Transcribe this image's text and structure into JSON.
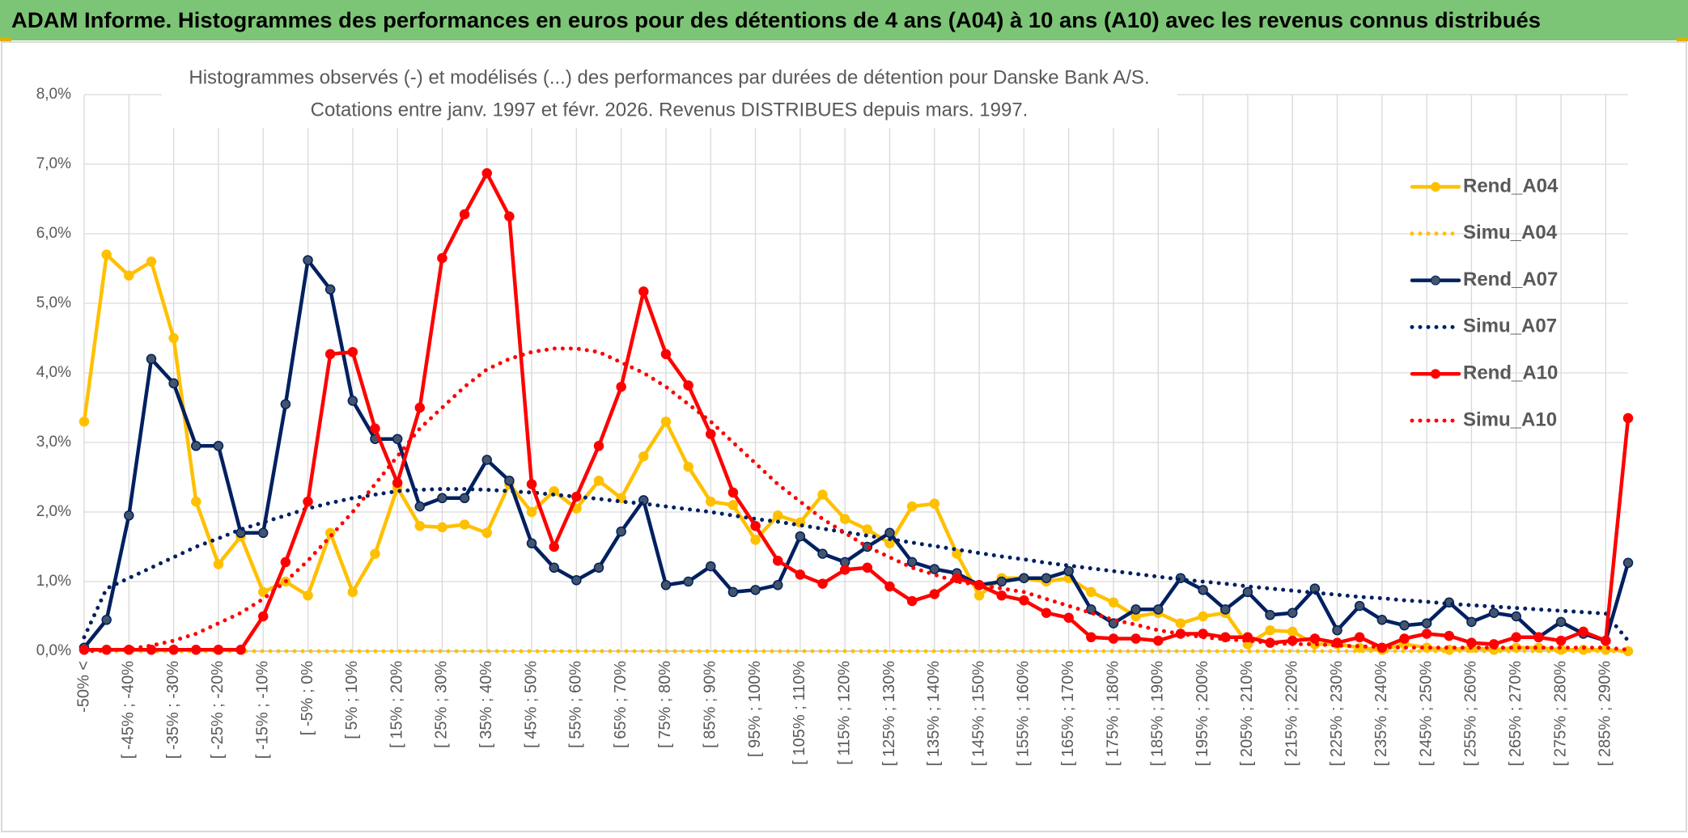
{
  "header": "ADAM Informe. Histogrammes des performances en euros pour des détentions de 4 ans (A04) à 10 ans (A10) avec les revenus connus distribués",
  "chart_data": {
    "type": "line",
    "title": "Histogrammes observés (-) et modélisés (...) des performances par durées de détention pour Danske Bank A/S.",
    "subtitle": "Cotations entre janv. 1997 et févr. 2026. Revenus DISTRIBUES depuis mars. 1997.",
    "categories": [
      "-50% <",
      null,
      "[ -45% ; -40%",
      null,
      "[ -35% ; -30%",
      null,
      "[ -25% ; -20%",
      null,
      "[ -15% ; -10%",
      null,
      "[ -5% ; 0%",
      null,
      "[ 5% ; 10%",
      null,
      "[ 15% ; 20%",
      null,
      "[ 25% ; 30%",
      null,
      "[ 35% ; 40%",
      null,
      "[ 45% ; 50%",
      null,
      "[ 55% ; 60%",
      null,
      "[ 65% ; 70%",
      null,
      "[ 75% ; 80%",
      null,
      "[ 85% ; 90%",
      null,
      "[ 95% ; 100%",
      null,
      "[ 105% ; 110%",
      null,
      "[ 115% ; 120%",
      null,
      "[ 125% ; 130%",
      null,
      "[ 135% ; 140%",
      null,
      "[ 145% ; 150%",
      null,
      "[ 155% ; 160%",
      null,
      "[ 165% ; 170%",
      null,
      "[ 175% ; 180%",
      null,
      "[ 185% ; 190%",
      null,
      "[ 195% ; 200%",
      null,
      "[ 205% ; 210%",
      null,
      "[ 215% ; 220%",
      null,
      "[ 225% ; 230%",
      null,
      "[ 235% ; 240%",
      null,
      "[ 245% ; 250%",
      null,
      "[ 255% ; 260%",
      null,
      "[ 265% ; 270%",
      null,
      "[ 275% ; 280%",
      null,
      "[ 285% ; 290%",
      null
    ],
    "series": [
      {
        "name": "Rend_A04",
        "color": "#FFC000",
        "line_style": "solid",
        "markers": true,
        "values": [
          3.3,
          5.7,
          5.4,
          5.6,
          4.5,
          2.15,
          1.25,
          1.65,
          0.85,
          1.0,
          0.8,
          1.7,
          0.85,
          1.4,
          2.35,
          1.8,
          1.78,
          1.82,
          1.7,
          2.4,
          2.0,
          2.3,
          2.05,
          2.45,
          2.2,
          2.8,
          3.3,
          2.65,
          2.15,
          2.1,
          1.6,
          1.95,
          1.85,
          2.25,
          1.9,
          1.75,
          1.55,
          2.08,
          2.12,
          1.4,
          0.8,
          1.05,
          1.05,
          1.0,
          1.05,
          0.85,
          0.7,
          0.5,
          0.55,
          0.4,
          0.5,
          0.55,
          0.1,
          0.3,
          0.28,
          0.1,
          0.1,
          0.05,
          0.02,
          0.1,
          0.05,
          0.02,
          0.05,
          0.02,
          0.05,
          0.05,
          0.02,
          0.02,
          0.02,
          0.0
        ]
      },
      {
        "name": "Simu_A04",
        "color": "#FFC000",
        "line_style": "dotted",
        "markers": false,
        "values": [
          0,
          0,
          0,
          0,
          0,
          0,
          0,
          0,
          0,
          0,
          0,
          0,
          0,
          0,
          0,
          0,
          0,
          0,
          0,
          0,
          0,
          0,
          0,
          0,
          0,
          0,
          0,
          0,
          0,
          0,
          0,
          0,
          0,
          0,
          0,
          0,
          0,
          0,
          0,
          0,
          0,
          0,
          0,
          0,
          0,
          0,
          0,
          0,
          0,
          0,
          0,
          0,
          0,
          0,
          0,
          0,
          0,
          0,
          0,
          0,
          0,
          0,
          0,
          0,
          0,
          0,
          0,
          0,
          0,
          0
        ]
      },
      {
        "name": "Rend_A07",
        "color": "#002060",
        "line_style": "solid",
        "markers": true,
        "values": [
          0.05,
          0.45,
          1.95,
          4.2,
          3.85,
          2.95,
          2.95,
          1.7,
          1.7,
          3.55,
          5.62,
          5.2,
          3.6,
          3.05,
          3.05,
          2.08,
          2.2,
          2.2,
          2.75,
          2.45,
          1.55,
          1.2,
          1.02,
          1.2,
          1.72,
          2.17,
          0.95,
          1.0,
          1.22,
          0.85,
          0.88,
          0.95,
          1.65,
          1.4,
          1.28,
          1.5,
          1.7,
          1.28,
          1.18,
          1.12,
          0.95,
          1.0,
          1.05,
          1.05,
          1.15,
          0.6,
          0.4,
          0.6,
          0.6,
          1.05,
          0.88,
          0.6,
          0.85,
          0.52,
          0.55,
          0.9,
          0.3,
          0.65,
          0.45,
          0.37,
          0.4,
          0.7,
          0.42,
          0.55,
          0.5,
          0.2,
          0.42,
          0.25,
          0.15,
          1.27
        ]
      },
      {
        "name": "Simu_A07",
        "color": "#002060",
        "line_style": "dotted",
        "markers": false,
        "values": [
          0.2,
          0.9,
          1.05,
          1.2,
          1.35,
          1.5,
          1.62,
          1.75,
          1.85,
          1.95,
          2.05,
          2.13,
          2.2,
          2.25,
          2.3,
          2.32,
          2.33,
          2.33,
          2.32,
          2.3,
          2.28,
          2.25,
          2.22,
          2.19,
          2.15,
          2.12,
          2.08,
          2.04,
          2.0,
          1.95,
          1.9,
          1.86,
          1.81,
          1.76,
          1.71,
          1.66,
          1.61,
          1.56,
          1.51,
          1.46,
          1.41,
          1.36,
          1.32,
          1.27,
          1.23,
          1.19,
          1.15,
          1.11,
          1.07,
          1.03,
          1.0,
          0.97,
          0.93,
          0.9,
          0.87,
          0.84,
          0.81,
          0.78,
          0.76,
          0.73,
          0.71,
          0.68,
          0.66,
          0.64,
          0.62,
          0.6,
          0.58,
          0.56,
          0.54,
          0.15
        ]
      },
      {
        "name": "Rend_A10",
        "color": "#FF0000",
        "line_style": "solid",
        "markers": true,
        "values": [
          0.02,
          0.02,
          0.02,
          0.02,
          0.02,
          0.02,
          0.02,
          0.02,
          0.5,
          1.28,
          2.15,
          4.27,
          4.3,
          3.2,
          2.42,
          3.5,
          5.65,
          6.28,
          6.87,
          6.25,
          2.4,
          1.5,
          2.22,
          2.95,
          3.8,
          5.17,
          4.27,
          3.82,
          3.12,
          2.28,
          1.8,
          1.3,
          1.1,
          0.97,
          1.17,
          1.2,
          0.93,
          0.72,
          0.82,
          1.05,
          0.95,
          0.8,
          0.73,
          0.55,
          0.48,
          0.2,
          0.18,
          0.18,
          0.15,
          0.25,
          0.25,
          0.2,
          0.2,
          0.12,
          0.15,
          0.18,
          0.12,
          0.2,
          0.05,
          0.18,
          0.25,
          0.22,
          0.12,
          0.1,
          0.2,
          0.2,
          0.15,
          0.28,
          0.15,
          3.35
        ]
      },
      {
        "name": "Simu_A10",
        "color": "#FF0000",
        "line_style": "dotted",
        "markers": false,
        "values": [
          0,
          0.01,
          0.03,
          0.08,
          0.15,
          0.25,
          0.4,
          0.55,
          0.75,
          1.0,
          1.3,
          1.65,
          2.0,
          2.4,
          2.8,
          3.2,
          3.5,
          3.8,
          4.05,
          4.2,
          4.3,
          4.35,
          4.35,
          4.3,
          4.15,
          4.0,
          3.8,
          3.55,
          3.3,
          3.0,
          2.7,
          2.4,
          2.15,
          1.9,
          1.7,
          1.5,
          1.35,
          1.2,
          1.1,
          1.0,
          0.95,
          0.9,
          0.85,
          0.75,
          0.65,
          0.55,
          0.45,
          0.38,
          0.3,
          0.25,
          0.2,
          0.17,
          0.15,
          0.12,
          0.1,
          0.1,
          0.08,
          0.07,
          0.06,
          0.05,
          0.05,
          0.05,
          0.05,
          0.05,
          0.05,
          0.05,
          0.05,
          0.05,
          0.05,
          0.02
        ]
      }
    ],
    "ylim": [
      0,
      8
    ],
    "yticks": [
      {
        "value": 0,
        "label": "0,0%"
      },
      {
        "value": 1,
        "label": "1,0%"
      },
      {
        "value": 2,
        "label": "2,0%"
      },
      {
        "value": 3,
        "label": "3,0%"
      },
      {
        "value": 4,
        "label": "4,0%"
      },
      {
        "value": 5,
        "label": "5,0%"
      },
      {
        "value": 6,
        "label": "6,0%"
      },
      {
        "value": 7,
        "label": "7,0%"
      },
      {
        "value": 8,
        "label": "8,0%"
      }
    ],
    "grid": true,
    "legend": "right"
  }
}
